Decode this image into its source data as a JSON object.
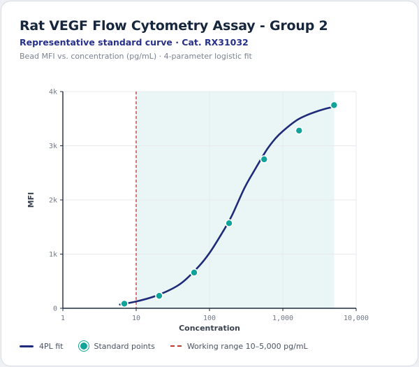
{
  "header": {
    "title": "Rat VEGF Flow Cytometry Assay - Group 2",
    "subtitle": "Representative standard curve · Cat. RX31032",
    "description": "Bead MFI vs. concentration (pg/mL) · 4-parameter logistic fit"
  },
  "legend": {
    "fit_label": "4PL fit",
    "points_label": "Standard points",
    "range_label": "Working range 10–5,000 pg/mL"
  },
  "colors": {
    "fit": "#1f2a7a",
    "points": "#0fa39a",
    "range_line": "#c0392b",
    "range_fill": "#e9f6f5"
  },
  "chart_data": {
    "type": "scatter",
    "title": "Rat VEGF Flow Cytometry Assay - Group 2",
    "xlabel": "Concentration",
    "ylabel": "MFI",
    "x_scale": "log",
    "xlim": [
      1,
      10000
    ],
    "ylim": [
      0,
      4000
    ],
    "x_ticks": [
      1,
      10,
      100,
      1000,
      10000
    ],
    "x_tick_labels": [
      "1",
      "10",
      "100",
      "1,000",
      "10,000"
    ],
    "y_ticks": [
      0,
      1000,
      2000,
      3000,
      4000
    ],
    "y_tick_labels": [
      "0",
      "1k",
      "2k",
      "3k",
      "4k"
    ],
    "grid": true,
    "legend_position": "bottom",
    "working_range": [
      10,
      5000
    ],
    "series": [
      {
        "name": "Standard points",
        "x": [
          6.9,
          20.6,
          61.7,
          185,
          556,
          1667,
          5000
        ],
        "y": [
          85,
          230,
          660,
          1570,
          2750,
          3280,
          3750
        ]
      },
      {
        "name": "4PL fit",
        "type": "line",
        "x": [
          6,
          10,
          20,
          40,
          70,
          100,
          150,
          200,
          300,
          400,
          600,
          800,
          1000,
          1500,
          2000,
          3000,
          4000,
          5000
        ],
        "y": [
          70,
          125,
          245,
          450,
          760,
          1020,
          1400,
          1700,
          2220,
          2520,
          2920,
          3140,
          3270,
          3460,
          3550,
          3640,
          3690,
          3720
        ]
      }
    ]
  }
}
